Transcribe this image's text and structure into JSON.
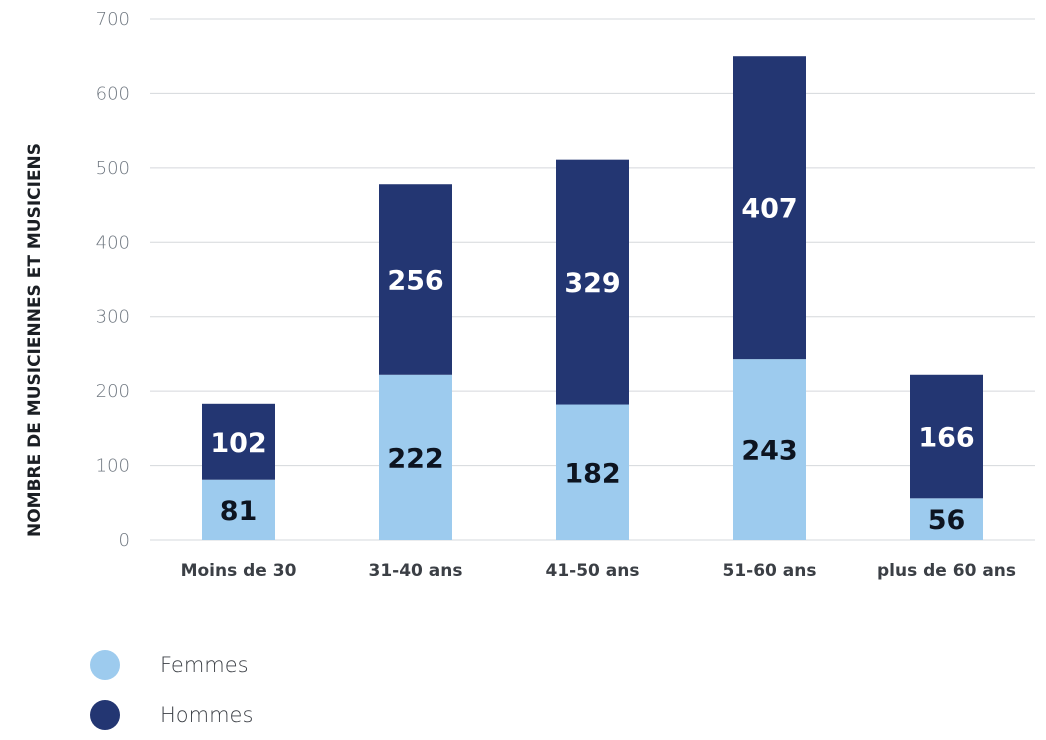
{
  "chart_data": {
    "type": "bar",
    "stacked": true,
    "categories": [
      "Moins de 30",
      "31-40 ans",
      "41-50 ans",
      "51-60 ans",
      "plus de 60 ans"
    ],
    "series": [
      {
        "name": "Femmes",
        "values": [
          81,
          222,
          182,
          243,
          56
        ],
        "color": "#9dcbee",
        "label_color": "#0d1420"
      },
      {
        "name": "Hommes",
        "values": [
          102,
          256,
          329,
          407,
          166
        ],
        "color": "#233672",
        "label_color": "#ffffff"
      }
    ],
    "ylabel": "NOMBRE DE MUSICIENNES ET MUSICIENS",
    "xlabel": "",
    "ylim": [
      0,
      700
    ],
    "yticks": [
      0,
      100,
      200,
      300,
      400,
      500,
      600,
      700
    ],
    "grid": true,
    "legend_position": "bottom-left"
  }
}
